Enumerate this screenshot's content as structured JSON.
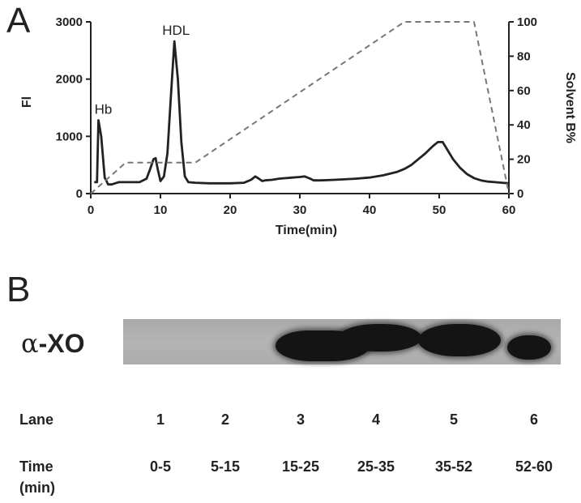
{
  "panel_a": {
    "letter": "A"
  },
  "panel_b": {
    "letter": "B"
  },
  "chart_data": {
    "type": "line",
    "xlabel": "Time(min)",
    "ylabel_left": "Fl",
    "ylabel_right": "Solvent B%",
    "xlim": [
      0,
      60
    ],
    "ylim_left": [
      0,
      3000
    ],
    "ylim_right": [
      0,
      100
    ],
    "x_ticks": [
      0,
      10,
      20,
      30,
      40,
      50,
      60
    ],
    "y_ticks_left": [
      0,
      1000,
      2000,
      3000
    ],
    "y_ticks_right": [
      0,
      20,
      40,
      60,
      80,
      100
    ],
    "series": [
      {
        "axis": "left",
        "style": "solid",
        "x": [
          0.5,
          0.9,
          1.1,
          1.5,
          2.0,
          2.5,
          3,
          4,
          5,
          6,
          7,
          8,
          8.5,
          9,
          9.3,
          9.6,
          10,
          10.5,
          11,
          11.5,
          12,
          12.5,
          13,
          13.5,
          14,
          15,
          17,
          20,
          22,
          23,
          23.6,
          24,
          24.6,
          25,
          26,
          27,
          28,
          29,
          30,
          30.7,
          31.5,
          32,
          33,
          35,
          38,
          40,
          42,
          44,
          45,
          46,
          47,
          48,
          49,
          49.8,
          50.5,
          51,
          52,
          53,
          54,
          55,
          56,
          57,
          58,
          59,
          60
        ],
        "y": [
          200,
          200,
          1280,
          1000,
          280,
          160,
          160,
          200,
          200,
          200,
          200,
          260,
          420,
          600,
          620,
          430,
          220,
          300,
          700,
          1700,
          2660,
          2000,
          900,
          300,
          200,
          190,
          180,
          180,
          190,
          240,
          300,
          270,
          220,
          230,
          240,
          260,
          270,
          280,
          290,
          300,
          260,
          230,
          230,
          240,
          260,
          280,
          320,
          380,
          430,
          500,
          600,
          700,
          820,
          900,
          900,
          800,
          600,
          450,
          340,
          270,
          230,
          210,
          200,
          190,
          180
        ]
      },
      {
        "axis": "right",
        "style": "dashed",
        "x": [
          0,
          5,
          15,
          45,
          55,
          60
        ],
        "y": [
          0,
          18,
          18,
          100,
          100,
          0
        ]
      }
    ],
    "annotations": [
      {
        "text": "Hb",
        "x": 1.1,
        "y": 1280
      },
      {
        "text": "HDL",
        "x": 12,
        "y": 2660
      }
    ]
  },
  "blot": {
    "label": "α-XO",
    "label_prefix": "α",
    "label_suffix": "-XO",
    "bands": [
      {
        "lane": "3",
        "intensity": 0.95
      },
      {
        "lane": "4",
        "intensity": 0.95
      },
      {
        "lane": "5",
        "intensity": 1.0
      },
      {
        "lane": "6",
        "intensity": 0.9
      }
    ]
  },
  "table": {
    "lane_header": "Lane",
    "time_header_line1": "Time",
    "time_header_line2": "(min)",
    "lanes": [
      "1",
      "2",
      "3",
      "4",
      "5",
      "6"
    ],
    "times": [
      "0-5",
      "5-15",
      "15-25",
      "25-35",
      "35-52",
      "52-60"
    ]
  },
  "colors": {
    "trace": "#222222",
    "gradient": "#777777",
    "band": "#141414",
    "membrane": "#b0b0b0"
  }
}
